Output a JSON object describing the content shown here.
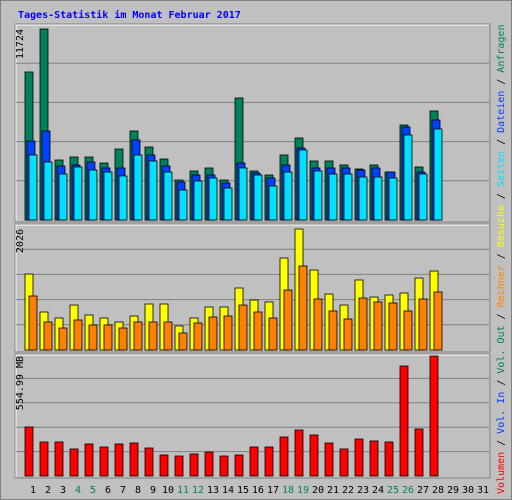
{
  "chart_data": [
    {
      "type": "bar",
      "title": "Tages-Statistik im Monat Februar 2017",
      "ylim": [
        0,
        11724
      ],
      "yticks": [
        11724
      ],
      "series": [
        {
          "name": "Anfragen",
          "color": "#00805c",
          "values": [
            9085,
            11724,
            3683,
            3867,
            3867,
            3499,
            4358,
            5463,
            4481,
            3744,
            2455,
            3008,
            3192,
            2455,
            7489,
            3008,
            2762,
            3990,
            5033,
            3621,
            3621,
            3376,
            3131,
            3376,
            2946,
            5831,
            3253,
            6691,
            null,
            null,
            null
          ]
        },
        {
          "name": "Dateien",
          "color": "#0040ff",
          "values": [
            4849,
            5463,
            3315,
            3376,
            3560,
            3192,
            3192,
            4910,
            3990,
            3315,
            2332,
            2762,
            2762,
            2271,
            3499,
            2885,
            2578,
            3376,
            4419,
            3192,
            3192,
            3192,
            3069,
            3192,
            2946,
            5708,
            2946,
            6138,
            null,
            null,
            null
          ]
        },
        {
          "name": "Seiten",
          "color": "#00e0ff",
          "values": [
            3990,
            3560,
            2823,
            3253,
            3069,
            2946,
            2701,
            3990,
            3621,
            2946,
            1841,
            2394,
            2578,
            1964,
            3192,
            2762,
            2087,
            2946,
            4297,
            3008,
            2823,
            2823,
            2639,
            2639,
            2578,
            5217,
            2823,
            5586,
            null,
            null,
            null
          ]
        }
      ]
    },
    {
      "type": "bar",
      "ylim": [
        0,
        2026
      ],
      "yticks": [
        2026
      ],
      "series": [
        {
          "name": "Besuche",
          "color": "#ffff00",
          "values": [
            1272,
            636,
            536,
            753,
            586,
            536,
            469,
            569,
            770,
            770,
            402,
            536,
            720,
            720,
            1038,
            837,
            804,
            1540,
            2026,
            1339,
            937,
            753,
            1172,
            887,
            921,
            954,
            1205,
            1322,
            null,
            null,
            null
          ]
        },
        {
          "name": "Rechner",
          "color": "#ff8000",
          "values": [
            904,
            469,
            368,
            502,
            419,
            419,
            368,
            469,
            469,
            469,
            285,
            452,
            552,
            569,
            753,
            636,
            536,
            1004,
            1406,
            854,
            653,
            519,
            870,
            804,
            787,
            653,
            854,
            971,
            null,
            null,
            null
          ]
        }
      ]
    },
    {
      "type": "bar",
      "ylim": [
        0,
        554.99
      ],
      "yticks": [
        {
          "value": 554.99,
          "label": "554.99 MB"
        }
      ],
      "categories": [
        "1",
        "2",
        "3",
        "4",
        "5",
        "6",
        "7",
        "8",
        "9",
        "10",
        "11",
        "12",
        "13",
        "14",
        "15",
        "16",
        "17",
        "18",
        "19",
        "20",
        "21",
        "22",
        "23",
        "24",
        "25",
        "26",
        "27",
        "28",
        "29",
        "30",
        "31"
      ],
      "label_colors": [
        "#000000",
        "#000000",
        "#000000",
        "#00805c",
        "#00805c",
        "#000000",
        "#000000",
        "#000000",
        "#000000",
        "#000000",
        "#00805c",
        "#00805c",
        "#000000",
        "#000000",
        "#000000",
        "#000000",
        "#000000",
        "#00805c",
        "#00805c",
        "#000000",
        "#000000",
        "#000000",
        "#000000",
        "#000000",
        "#00805c",
        "#00805c",
        "#000000",
        "#000000",
        "#000000",
        "#000000",
        "#000000"
      ],
      "legend_separator": "/",
      "series": [
        {
          "name": "Vol. Out",
          "color": "#00805c",
          "values": [
            null,
            null,
            null,
            null,
            null,
            null,
            null,
            null,
            null,
            null,
            null,
            null,
            null,
            null,
            null,
            null,
            null,
            null,
            null,
            null,
            null,
            null,
            null,
            null,
            null,
            null,
            null,
            null,
            null,
            null,
            null
          ]
        },
        {
          "name": "Vol. In",
          "color": "#0040ff",
          "values": [
            null,
            null,
            null,
            null,
            null,
            null,
            null,
            null,
            null,
            null,
            null,
            null,
            null,
            null,
            null,
            null,
            null,
            null,
            null,
            null,
            null,
            null,
            null,
            null,
            null,
            null,
            null,
            null,
            null,
            null,
            null
          ]
        },
        {
          "name": "Volumen",
          "color": "#ff0000",
          "values": [
            226.6,
            157.3,
            157.3,
            124.9,
            148.0,
            134.1,
            148.0,
            152.6,
            129.5,
            97.1,
            92.5,
            101.8,
            111.0,
            92.5,
            97.1,
            134.1,
            134.1,
            180.4,
            212.7,
            189.6,
            152.6,
            124.9,
            171.1,
            161.9,
            157.3,
            508.7,
            217.4,
            554.99,
            null,
            null,
            null
          ]
        }
      ]
    }
  ]
}
